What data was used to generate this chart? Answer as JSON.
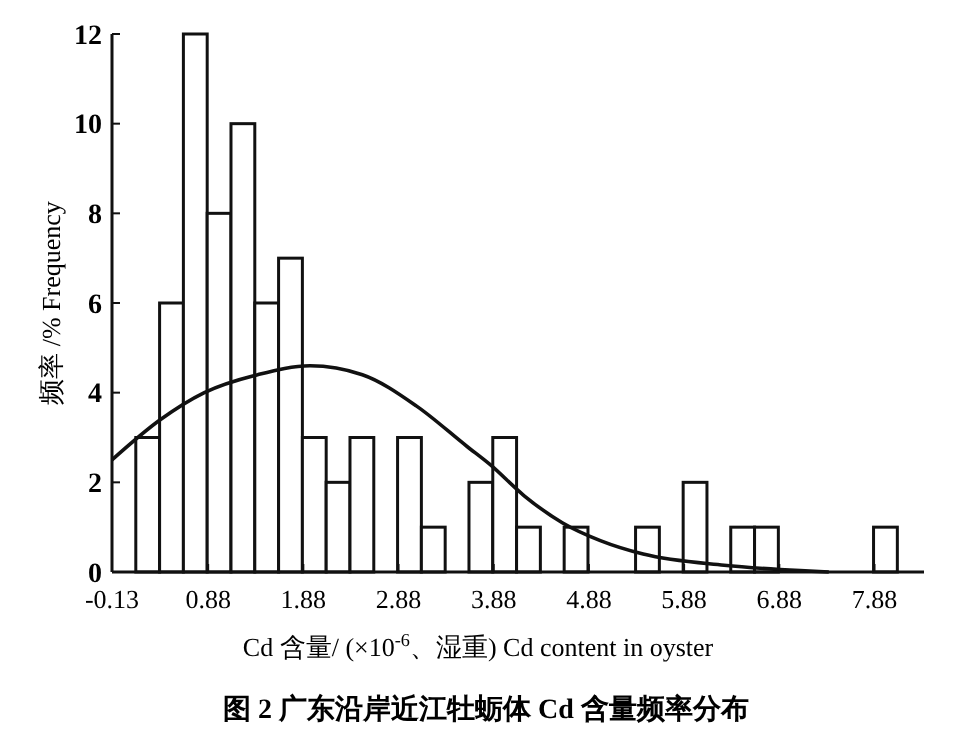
{
  "chart_data": {
    "type": "histogram",
    "title": "图 2   广东沿岸近江牡蛎体 Cd 含量频率分布",
    "xlabel": "Cd  含量/ (×10$^{-6}$、湿重)   Cd content in oyster",
    "ylabel": "频率 /%   Frequency",
    "bins": [
      -0.13,
      0.12,
      0.37,
      0.62,
      0.87,
      1.12,
      1.37,
      1.62,
      1.87,
      2.12,
      2.37,
      2.62,
      2.87,
      3.12,
      3.37,
      3.62,
      3.87,
      4.12,
      4.37,
      4.62,
      4.87,
      5.12,
      5.37,
      5.62,
      5.87,
      6.12,
      6.37,
      6.62,
      6.87,
      7.12,
      7.37,
      7.62,
      7.87,
      8.12
    ],
    "values": [
      0,
      3,
      6,
      12,
      8,
      10,
      6,
      7,
      3,
      2,
      3,
      0,
      3,
      1,
      0,
      2,
      3,
      1,
      0,
      1,
      0,
      0,
      1,
      0,
      2,
      0,
      1,
      1,
      0,
      0,
      0,
      0,
      1
    ],
    "color": "#ffffff",
    "series": [
      {
        "type": "line",
        "color": "#111111",
        "x": [
          -0.13,
          0.38,
          0.84,
          1.4,
          1.95,
          2.5,
          3.07,
          3.6,
          3.84,
          4.2,
          4.6,
          5.0,
          5.45,
          6.3,
          7.1,
          7.4
        ],
        "values": [
          2.5,
          3.4,
          4.0,
          4.4,
          4.6,
          4.4,
          3.7,
          2.8,
          2.4,
          1.7,
          1.1,
          0.7,
          0.4,
          0.15,
          0.03,
          0
        ]
      }
    ],
    "xlim": [
      -0.13,
      8.4
    ],
    "xticks": [
      -0.13,
      0.88,
      1.88,
      2.88,
      3.88,
      4.88,
      5.88,
      6.88,
      7.88
    ],
    "ylim": [
      0,
      12
    ],
    "yticks": [
      0,
      2,
      4,
      6,
      8,
      10,
      12
    ]
  }
}
